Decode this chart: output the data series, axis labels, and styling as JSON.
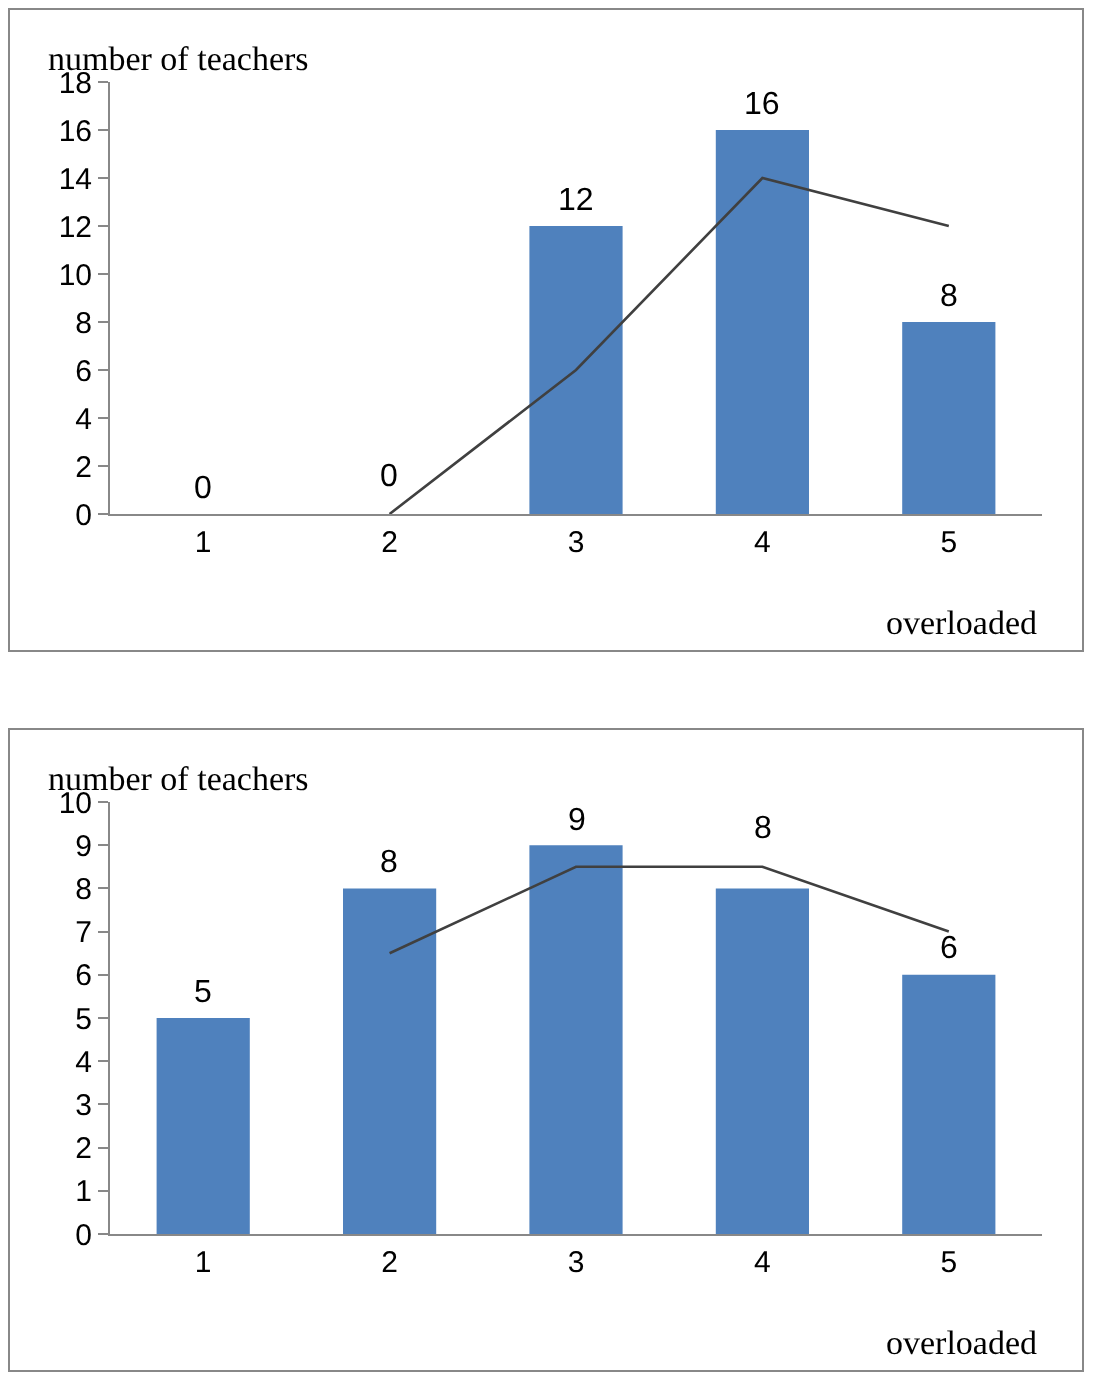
{
  "chart_data": [
    {
      "type": "bar",
      "ylabel": "number of teachers",
      "xlabel": "overloaded",
      "categories": [
        "1",
        "2",
        "3",
        "4",
        "5"
      ],
      "ylim": [
        0,
        18
      ],
      "yticks": [
        0,
        2,
        4,
        6,
        8,
        10,
        12,
        14,
        16,
        18
      ],
      "grid": false,
      "series": [
        {
          "color": "#4f81bd",
          "values": [
            0,
            0,
            12,
            16,
            8
          ],
          "value_labels": [
            "0",
            "0",
            "12",
            "16",
            "8"
          ]
        },
        {
          "type": "line",
          "color": "#404040",
          "values": [
            null,
            0,
            6,
            14,
            12
          ]
        }
      ]
    },
    {
      "type": "bar",
      "ylabel": "number of teachers",
      "xlabel": "overloaded",
      "categories": [
        "1",
        "2",
        "3",
        "4",
        "5"
      ],
      "ylim": [
        0,
        10
      ],
      "yticks": [
        0,
        1,
        2,
        3,
        4,
        5,
        6,
        7,
        8,
        9,
        10
      ],
      "grid": false,
      "series": [
        {
          "color": "#4f81bd",
          "values": [
            5,
            8,
            9,
            8,
            6
          ],
          "value_labels": [
            "5",
            "8",
            "9",
            "8",
            "6"
          ]
        },
        {
          "type": "line",
          "color": "#404040",
          "values": [
            null,
            6.5,
            8.5,
            8.5,
            7
          ]
        }
      ]
    }
  ]
}
